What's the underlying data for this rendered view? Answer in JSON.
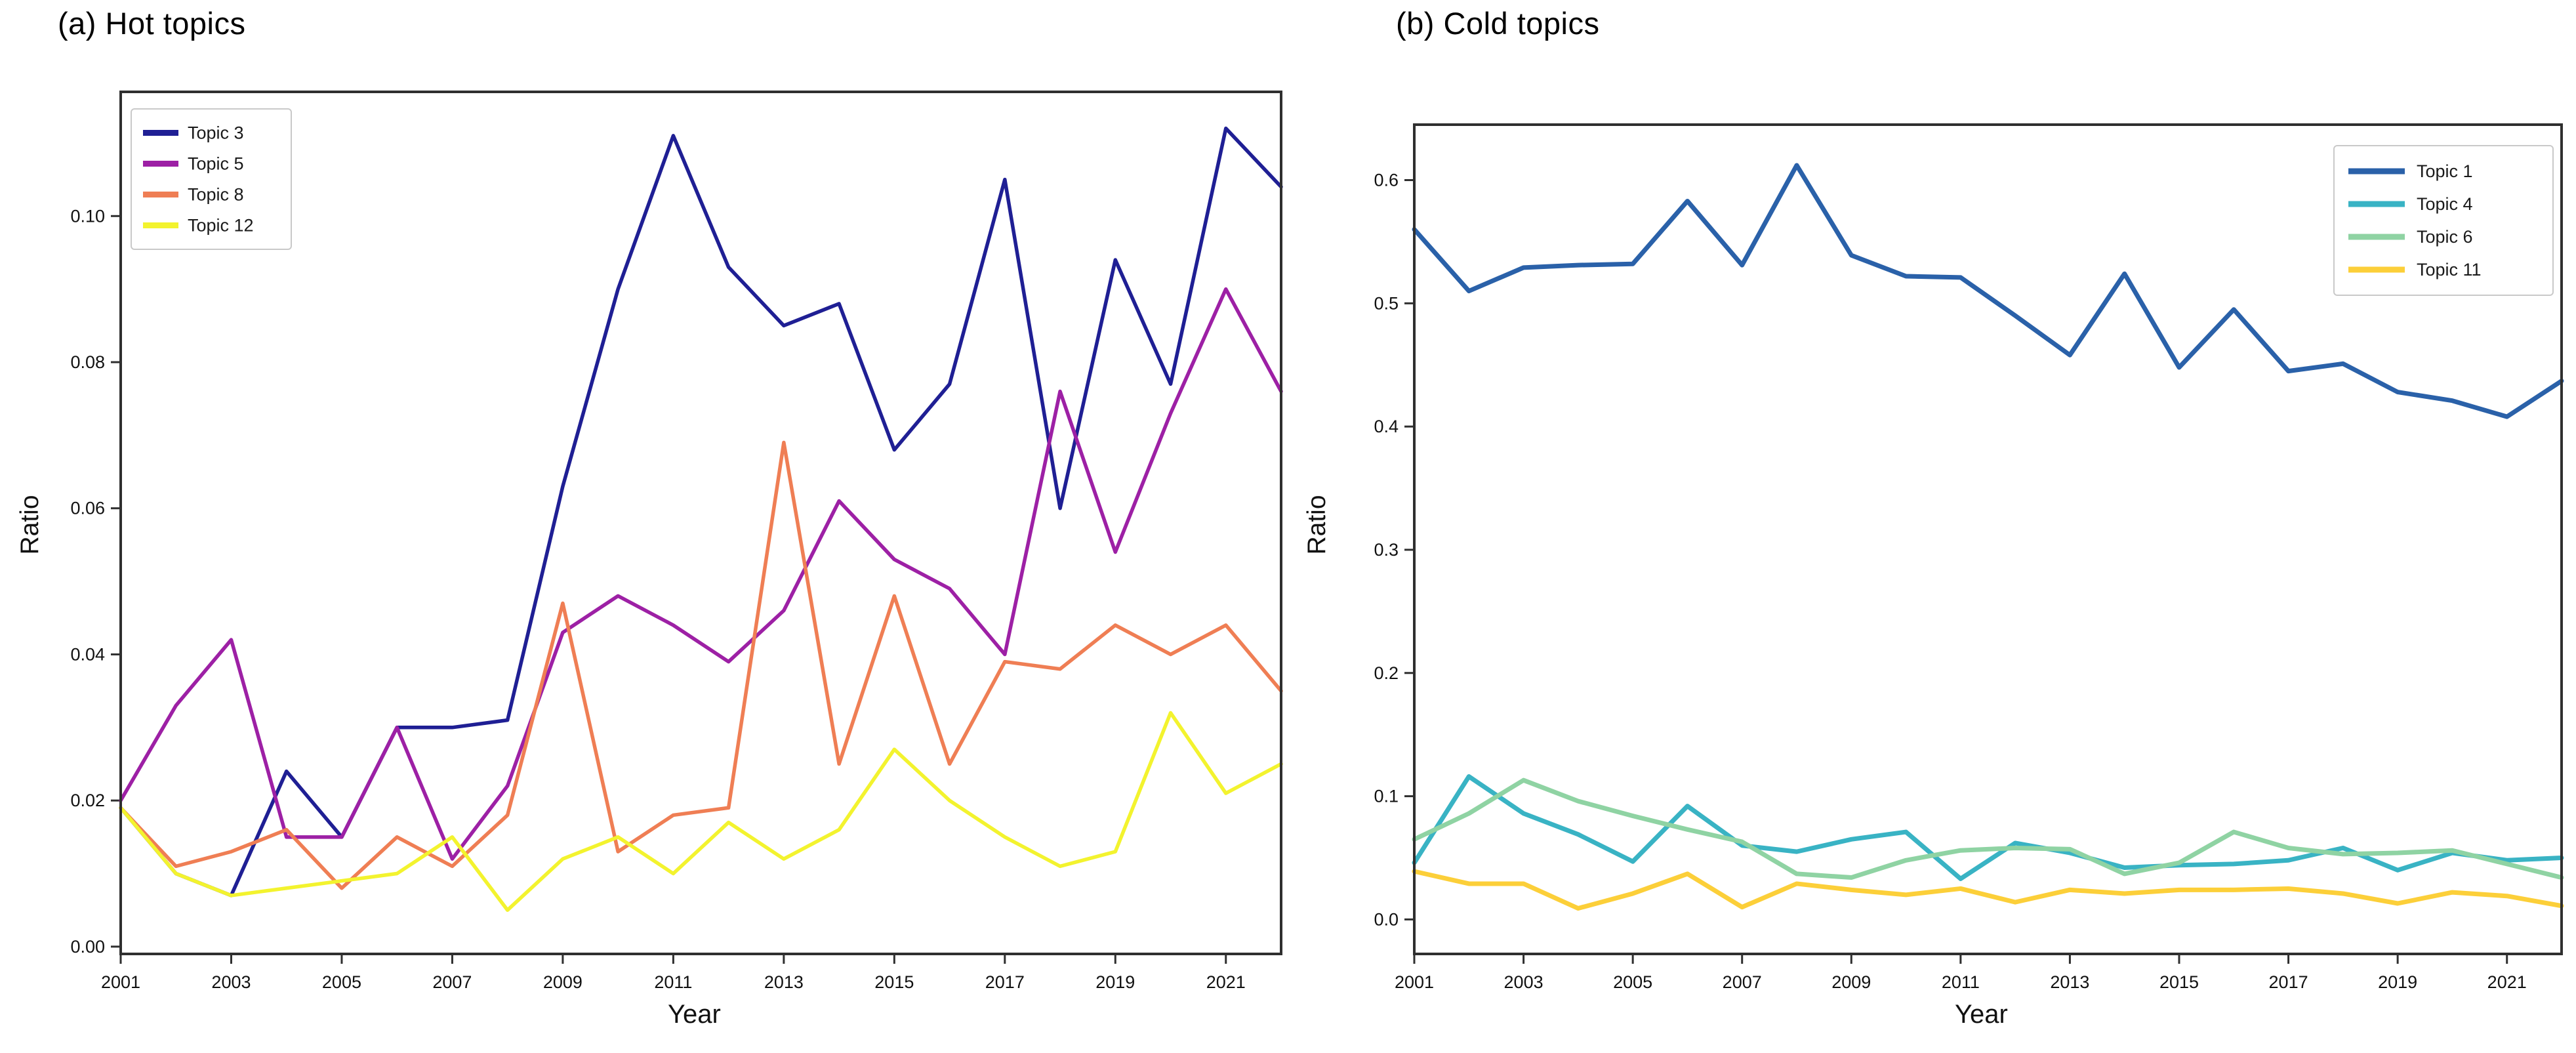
{
  "figure": {
    "background": "#ffffff",
    "spine_color": "#2f2f2f",
    "text_color": "#111111"
  },
  "chart_data": [
    {
      "type": "line",
      "title": "(a) Hot topics",
      "xlabel": "Year",
      "ylabel": "Ratio",
      "xlim": [
        2001,
        2022
      ],
      "ylim": [
        -0.001,
        0.117
      ],
      "grid": false,
      "legend_position": "upper left",
      "x": [
        2001,
        2002,
        2003,
        2004,
        2005,
        2006,
        2007,
        2008,
        2009,
        2010,
        2011,
        2012,
        2013,
        2014,
        2015,
        2016,
        2017,
        2018,
        2019,
        2020,
        2021,
        2022
      ],
      "xtick_labels": [
        "2001",
        "2003",
        "2005",
        "2007",
        "2009",
        "2011",
        "2013",
        "2015",
        "2017",
        "2019",
        "2021"
      ],
      "xtick_values": [
        2001,
        2003,
        2005,
        2007,
        2009,
        2011,
        2013,
        2015,
        2017,
        2019,
        2021
      ],
      "ytick_labels": [
        "0.00",
        "0.02",
        "0.04",
        "0.06",
        "0.08",
        "0.10"
      ],
      "ytick_values": [
        0.0,
        0.02,
        0.04,
        0.06,
        0.08,
        0.1
      ],
      "series": [
        {
          "name": "Topic 3",
          "color": "#1f1f94",
          "values": [
            0.019,
            0.01,
            0.007,
            0.024,
            0.015,
            0.03,
            0.03,
            0.031,
            0.063,
            0.09,
            0.111,
            0.093,
            0.085,
            0.088,
            0.068,
            0.077,
            0.105,
            0.06,
            0.094,
            0.077,
            0.112,
            0.104
          ]
        },
        {
          "name": "Topic 5",
          "color": "#9d20a5",
          "values": [
            0.02,
            0.033,
            0.042,
            0.015,
            0.015,
            0.03,
            0.012,
            0.022,
            0.043,
            0.048,
            0.044,
            0.039,
            0.046,
            0.061,
            0.053,
            0.049,
            0.04,
            0.076,
            0.054,
            0.073,
            0.09,
            0.076
          ]
        },
        {
          "name": "Topic 8",
          "color": "#ef7e54",
          "values": [
            0.019,
            0.011,
            0.013,
            0.016,
            0.008,
            0.015,
            0.011,
            0.018,
            0.047,
            0.013,
            0.018,
            0.019,
            0.069,
            0.025,
            0.048,
            0.025,
            0.039,
            0.038,
            0.044,
            0.04,
            0.044,
            0.035
          ]
        },
        {
          "name": "Topic 12",
          "color": "#f3f32e",
          "values": [
            0.019,
            0.01,
            0.007,
            0.008,
            0.009,
            0.01,
            0.015,
            0.005,
            0.012,
            0.015,
            0.01,
            0.017,
            0.012,
            0.016,
            0.027,
            0.02,
            0.015,
            0.011,
            0.013,
            0.032,
            0.021,
            0.025
          ]
        }
      ]
    },
    {
      "type": "line",
      "title": "(b) Cold topics",
      "xlabel": "Year",
      "ylabel": "Ratio",
      "xlim": [
        2001,
        2022
      ],
      "ylim": [
        -0.028,
        0.645
      ],
      "grid": false,
      "legend_position": "upper right",
      "x": [
        2001,
        2002,
        2003,
        2004,
        2005,
        2006,
        2007,
        2008,
        2009,
        2010,
        2011,
        2012,
        2013,
        2014,
        2015,
        2016,
        2017,
        2018,
        2019,
        2020,
        2021,
        2022
      ],
      "xtick_labels": [
        "2001",
        "2003",
        "2005",
        "2007",
        "2009",
        "2011",
        "2013",
        "2015",
        "2017",
        "2019",
        "2021"
      ],
      "xtick_values": [
        2001,
        2003,
        2005,
        2007,
        2009,
        2011,
        2013,
        2015,
        2017,
        2019,
        2021
      ],
      "ytick_labels": [
        "0.0",
        "0.1",
        "0.2",
        "0.3",
        "0.4",
        "0.5",
        "0.6"
      ],
      "ytick_values": [
        0.0,
        0.1,
        0.2,
        0.3,
        0.4,
        0.5,
        0.6
      ],
      "series": [
        {
          "name": "Topic 1",
          "color": "#2a61a9",
          "values": [
            0.56,
            0.51,
            0.529,
            0.531,
            0.532,
            0.583,
            0.531,
            0.612,
            0.539,
            0.522,
            0.521,
            0.49,
            0.458,
            0.524,
            0.448,
            0.495,
            0.445,
            0.451,
            0.428,
            0.421,
            0.408,
            0.437
          ]
        },
        {
          "name": "Topic 4",
          "color": "#39b3c4",
          "values": [
            0.046,
            0.116,
            0.086,
            0.069,
            0.047,
            0.092,
            0.06,
            0.055,
            0.065,
            0.071,
            0.033,
            0.062,
            0.054,
            0.042,
            0.044,
            0.045,
            0.048,
            0.058,
            0.04,
            0.054,
            0.048,
            0.05
          ]
        },
        {
          "name": "Topic 6",
          "color": "#8fd3a3",
          "values": [
            0.065,
            0.086,
            0.113,
            0.096,
            0.084,
            0.073,
            0.063,
            0.037,
            0.034,
            0.048,
            0.056,
            0.058,
            0.057,
            0.037,
            0.046,
            0.071,
            0.058,
            0.053,
            0.054,
            0.056,
            0.045,
            0.034
          ]
        },
        {
          "name": "Topic 11",
          "color": "#fccf39",
          "values": [
            0.039,
            0.029,
            0.029,
            0.009,
            0.021,
            0.037,
            0.01,
            0.029,
            0.024,
            0.02,
            0.025,
            0.014,
            0.024,
            0.021,
            0.024,
            0.024,
            0.025,
            0.021,
            0.013,
            0.022,
            0.019,
            0.011
          ]
        }
      ]
    }
  ]
}
